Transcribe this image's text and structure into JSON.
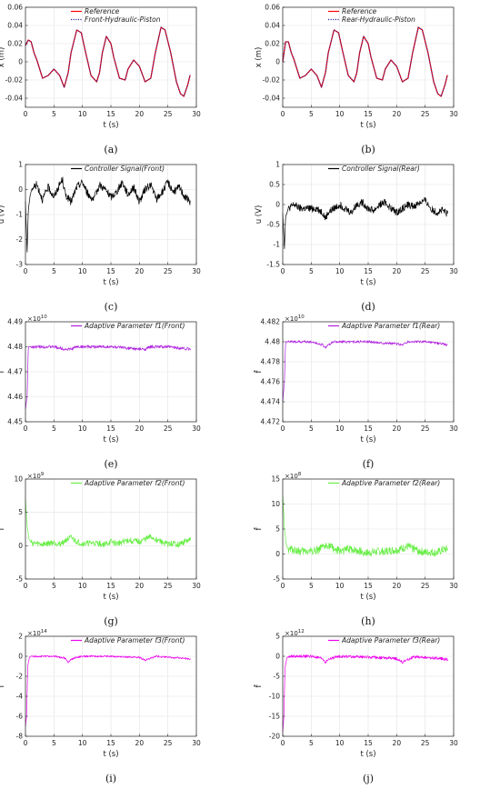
{
  "chart_data": [
    {
      "type": "line",
      "id": "a",
      "caption": "(a)",
      "xlabel": "t (s)",
      "ylabel": "x (m)",
      "xlim": [
        0,
        30
      ],
      "ylim": [
        -0.05,
        0.06
      ],
      "xticks": [
        "0",
        "5",
        "10",
        "15",
        "20",
        "25",
        "30"
      ],
      "yticks": [
        "-0.04",
        "-0.02",
        "0",
        "0.02",
        "0.04",
        "0.06"
      ],
      "grid": true,
      "legend": "top-center",
      "series": [
        {
          "name": "Reference",
          "color": "#ff0000",
          "style": "solid",
          "x": [
            0,
            0.5,
            1,
            1.5,
            2,
            3,
            4,
            5,
            6,
            6.8,
            7.5,
            8,
            9,
            9.8,
            10.5,
            11.5,
            12.5,
            13,
            13.5,
            14.2,
            15,
            15.5,
            16.5,
            17.5,
            18,
            19,
            20,
            21,
            22,
            22.8,
            23.8,
            24.5,
            25.5,
            26.5,
            27.2,
            27.8,
            28.5,
            29
          ],
          "values": [
            0.018,
            0.024,
            0.022,
            0.01,
            0.002,
            -0.018,
            -0.015,
            -0.008,
            -0.015,
            -0.028,
            -0.012,
            0.01,
            0.035,
            0.032,
            0.012,
            -0.015,
            -0.022,
            -0.012,
            0.01,
            0.028,
            0.02,
            0.005,
            -0.018,
            -0.02,
            -0.008,
            0.002,
            -0.005,
            -0.022,
            -0.018,
            0.01,
            0.038,
            0.035,
            0.01,
            -0.022,
            -0.035,
            -0.038,
            -0.025,
            -0.012
          ]
        },
        {
          "name": "Front-Hydraulic-Piston",
          "color": "#2a2a9a",
          "style": "dotted",
          "x": [
            0,
            0.5,
            1,
            1.5,
            2,
            3,
            4,
            5,
            6,
            6.8,
            7.5,
            8,
            9,
            9.8,
            10.5,
            11.5,
            12.5,
            13,
            13.5,
            14.2,
            15,
            15.5,
            16.5,
            17.5,
            18,
            19,
            20,
            21,
            22,
            22.8,
            23.8,
            24.5,
            25.5,
            26.5,
            27.2,
            27.8,
            28.5,
            29
          ],
          "values": [
            0.018,
            0.024,
            0.022,
            0.01,
            0.002,
            -0.018,
            -0.015,
            -0.008,
            -0.015,
            -0.028,
            -0.012,
            0.01,
            0.035,
            0.032,
            0.012,
            -0.015,
            -0.022,
            -0.012,
            0.01,
            0.028,
            0.02,
            0.005,
            -0.018,
            -0.02,
            -0.008,
            0.002,
            -0.005,
            -0.022,
            -0.018,
            0.01,
            0.038,
            0.035,
            0.01,
            -0.022,
            -0.035,
            -0.038,
            -0.025,
            -0.012
          ]
        }
      ]
    },
    {
      "type": "line",
      "id": "b",
      "caption": "(b)",
      "xlabel": "t (s)",
      "ylabel": "x (m)",
      "xlim": [
        0,
        30
      ],
      "ylim": [
        -0.05,
        0.06
      ],
      "xticks": [
        "0",
        "5",
        "10",
        "15",
        "20",
        "25",
        "30"
      ],
      "yticks": [
        "-0.04",
        "-0.02",
        "0",
        "0.02",
        "0.04",
        "0.06"
      ],
      "grid": true,
      "legend": "top-center",
      "series": [
        {
          "name": "Reference",
          "color": "#ff0000",
          "style": "solid",
          "x": [
            0,
            0.5,
            1,
            1.5,
            2,
            3,
            4,
            5,
            6,
            6.8,
            7.5,
            8,
            9,
            9.8,
            10.5,
            11.5,
            12.5,
            13,
            13.5,
            14.2,
            15,
            15.5,
            16.5,
            17.5,
            18,
            19,
            20,
            21,
            22,
            22.8,
            23.8,
            24.5,
            25.5,
            26.5,
            27.2,
            27.8,
            28.5,
            29
          ],
          "values": [
            0.0,
            0.022,
            0.022,
            0.01,
            0.002,
            -0.018,
            -0.015,
            -0.008,
            -0.015,
            -0.028,
            -0.012,
            0.01,
            0.035,
            0.032,
            0.012,
            -0.015,
            -0.022,
            -0.012,
            0.01,
            0.028,
            0.02,
            0.005,
            -0.018,
            -0.02,
            -0.008,
            0.002,
            -0.005,
            -0.022,
            -0.018,
            0.01,
            0.038,
            0.035,
            0.01,
            -0.022,
            -0.035,
            -0.038,
            -0.025,
            -0.012
          ]
        },
        {
          "name": "Rear-Hydraulic-Piston",
          "color": "#2a2a9a",
          "style": "dotted",
          "x": [
            0,
            0.5,
            1,
            1.5,
            2,
            3,
            4,
            5,
            6,
            6.8,
            7.5,
            8,
            9,
            9.8,
            10.5,
            11.5,
            12.5,
            13,
            13.5,
            14.2,
            15,
            15.5,
            16.5,
            17.5,
            18,
            19,
            20,
            21,
            22,
            22.8,
            23.8,
            24.5,
            25.5,
            26.5,
            27.2,
            27.8,
            28.5,
            29
          ],
          "values": [
            0.0,
            0.022,
            0.022,
            0.01,
            0.002,
            -0.018,
            -0.015,
            -0.008,
            -0.015,
            -0.028,
            -0.012,
            0.01,
            0.035,
            0.032,
            0.012,
            -0.015,
            -0.022,
            -0.012,
            0.01,
            0.028,
            0.02,
            0.005,
            -0.018,
            -0.02,
            -0.008,
            0.002,
            -0.005,
            -0.022,
            -0.018,
            0.01,
            0.038,
            0.035,
            0.01,
            -0.022,
            -0.035,
            -0.038,
            -0.025,
            -0.012
          ]
        }
      ]
    },
    {
      "type": "line",
      "id": "c",
      "caption": "(c)",
      "xlabel": "t (s)",
      "ylabel": "u (V)",
      "xlim": [
        0,
        30
      ],
      "ylim": [
        -3,
        1
      ],
      "xticks": [
        "0",
        "5",
        "10",
        "15",
        "20",
        "25",
        "30"
      ],
      "yticks": [
        "-3",
        "-2",
        "-1",
        "0",
        "1"
      ],
      "grid": true,
      "legend": "top-center",
      "series": [
        {
          "name": "Controller Signal(Front)",
          "color": "#000000",
          "style": "solid",
          "x": [
            0,
            0.3,
            0.5,
            1,
            2,
            3,
            4,
            5,
            6,
            6.5,
            7,
            8,
            9,
            10,
            11,
            12,
            13,
            14,
            15,
            16,
            17,
            18,
            19,
            20,
            21,
            22,
            23,
            24,
            25,
            26,
            27,
            28,
            29
          ],
          "values": [
            -0.5,
            -2.5,
            -0.8,
            0.0,
            0.2,
            -0.4,
            0.1,
            -0.3,
            0.2,
            0.4,
            -0.2,
            -0.5,
            0.1,
            0.3,
            -0.2,
            -0.4,
            0.2,
            0.0,
            -0.3,
            -0.1,
            0.3,
            -0.2,
            0.1,
            -0.5,
            0.0,
            0.2,
            -0.4,
            -0.1,
            0.3,
            -0.1,
            0.1,
            -0.3,
            -0.5
          ],
          "noise": 0.3
        },
        {
          "name": "",
          "color": "#000000",
          "style": "solid",
          "x": [],
          "values": []
        }
      ]
    },
    {
      "type": "line",
      "id": "d",
      "caption": "(d)",
      "xlabel": "t (s)",
      "ylabel": "u (V)",
      "xlim": [
        0,
        30
      ],
      "ylim": [
        -1.5,
        1
      ],
      "xticks": [
        "0",
        "5",
        "10",
        "15",
        "20",
        "25",
        "30"
      ],
      "yticks": [
        "-1.5",
        "-1",
        "-0.5",
        "0",
        "0.5",
        "1"
      ],
      "grid": true,
      "legend": "top-center",
      "series": [
        {
          "name": "Controller Signal(Rear)",
          "color": "#000000",
          "style": "solid",
          "x": [
            0,
            0.3,
            0.5,
            1,
            2,
            3,
            4,
            5,
            6,
            7,
            7.5,
            8,
            9,
            10,
            11,
            12,
            13,
            14,
            15,
            16,
            17,
            18,
            19,
            20,
            21,
            22,
            23,
            24,
            25,
            26,
            27,
            28,
            29
          ],
          "values": [
            -0.2,
            -1.1,
            -0.3,
            -0.1,
            0.0,
            -0.1,
            -0.1,
            -0.1,
            -0.1,
            -0.2,
            -0.35,
            -0.2,
            -0.1,
            0.0,
            -0.1,
            -0.2,
            0.0,
            0.05,
            -0.1,
            -0.15,
            0.0,
            0.05,
            -0.1,
            -0.2,
            -0.1,
            0.0,
            -0.05,
            0.05,
            0.1,
            -0.1,
            -0.2,
            -0.15,
            -0.25
          ],
          "noise": 0.18
        }
      ]
    },
    {
      "type": "line",
      "id": "e",
      "caption": "(e)",
      "xlabel": "t (s)",
      "ylabel": "f̂",
      "exponent": "×10",
      "exponent_power": "10",
      "xlim": [
        0,
        30
      ],
      "ylim": [
        4.45,
        4.49
      ],
      "xticks": [
        "0",
        "5",
        "10",
        "15",
        "20",
        "25",
        "30"
      ],
      "yticks": [
        "4.45",
        "4.46",
        "4.47",
        "4.48",
        "4.49"
      ],
      "grid": true,
      "legend": "top-center",
      "series": [
        {
          "name": "Adaptive Parameter f1(Front)",
          "color": "#b020e0",
          "style": "solid",
          "x": [
            0,
            0.3,
            0.5,
            1,
            5,
            7,
            8,
            9,
            10,
            15,
            20,
            21,
            22,
            25,
            29
          ],
          "values": [
            4.455,
            4.46,
            4.48,
            4.48,
            4.48,
            4.479,
            4.479,
            4.48,
            4.48,
            4.48,
            4.479,
            4.479,
            4.48,
            4.48,
            4.479
          ],
          "noise": 0.0012
        }
      ]
    },
    {
      "type": "line",
      "id": "f",
      "caption": "(f)",
      "xlabel": "t (s)",
      "ylabel": "f̂",
      "exponent": "×10",
      "exponent_power": "10",
      "xlim": [
        0,
        30
      ],
      "ylim": [
        4.472,
        4.482
      ],
      "xticks": [
        "0",
        "5",
        "10",
        "15",
        "20",
        "25",
        "30"
      ],
      "yticks": [
        "4.472",
        "4.474",
        "4.476",
        "4.478",
        "4.48",
        "4.482"
      ],
      "grid": true,
      "legend": "top-center",
      "series": [
        {
          "name": "Adaptive Parameter f1(Rear)",
          "color": "#b020e0",
          "style": "solid",
          "x": [
            0,
            0.3,
            0.5,
            1,
            5,
            7,
            7.5,
            8,
            9,
            10,
            15,
            20,
            21,
            22,
            25,
            29
          ],
          "values": [
            4.474,
            4.476,
            4.48,
            4.48,
            4.48,
            4.4797,
            4.4794,
            4.4797,
            4.48,
            4.48,
            4.48,
            4.4798,
            4.4797,
            4.48,
            4.48,
            4.4797
          ],
          "noise": 0.00025
        }
      ]
    },
    {
      "type": "line",
      "id": "g",
      "caption": "(g)",
      "xlabel": "t (s)",
      "ylabel": "f̂",
      "exponent": "×10",
      "exponent_power": "9",
      "xlim": [
        0,
        30
      ],
      "ylim": [
        -5,
        10
      ],
      "xticks": [
        "0",
        "5",
        "10",
        "15",
        "20",
        "25",
        "30"
      ],
      "yticks": [
        "-5",
        "0",
        "5",
        "10"
      ],
      "grid": true,
      "legend": "top-center",
      "series": [
        {
          "name": "Adaptive Parameter f2(Front)",
          "color": "#66ee44",
          "style": "solid",
          "x": [
            0,
            0.3,
            0.6,
            1,
            2,
            3,
            5,
            6,
            7,
            8,
            9,
            10,
            12,
            14,
            15,
            16,
            18,
            20,
            22,
            24,
            25,
            26,
            27,
            28,
            29
          ],
          "values": [
            7,
            3,
            1,
            0.5,
            0.3,
            0.2,
            0.5,
            0.2,
            0.8,
            1.2,
            0.6,
            0.3,
            0.4,
            0.2,
            0.6,
            0.3,
            0.8,
            0.6,
            1.3,
            0.5,
            0.2,
            0.3,
            0.2,
            0.6,
            0.8
          ],
          "noise": 0.9
        }
      ]
    },
    {
      "type": "line",
      "id": "h",
      "caption": "(h)",
      "xlabel": "t (s)",
      "ylabel": "f̂",
      "exponent": "×10",
      "exponent_power": "8",
      "xlim": [
        0,
        30
      ],
      "ylim": [
        -5,
        15
      ],
      "xticks": [
        "0",
        "5",
        "10",
        "15",
        "20",
        "25",
        "30"
      ],
      "yticks": [
        "-5",
        "0",
        "5",
        "10",
        "15"
      ],
      "grid": true,
      "legend": "top-center",
      "series": [
        {
          "name": "Adaptive Parameter f2(Rear)",
          "color": "#66ee44",
          "style": "solid",
          "x": [
            0,
            0.3,
            0.6,
            1,
            2,
            3,
            5,
            6,
            7,
            8,
            9,
            10,
            12,
            14,
            15,
            16,
            18,
            20,
            22,
            24,
            25,
            26,
            27,
            28,
            29
          ],
          "values": [
            12,
            5,
            2,
            1,
            0.8,
            0.5,
            0.6,
            0.8,
            1.2,
            1.8,
            1.0,
            0.6,
            1.0,
            0.4,
            0.2,
            0.4,
            0.6,
            0.8,
            1.5,
            0.6,
            0.3,
            0.4,
            0.2,
            0.8,
            1.0
          ],
          "noise": 1.6
        }
      ]
    },
    {
      "type": "line",
      "id": "i",
      "caption": "(i)",
      "xlabel": "t (s)",
      "ylabel": "f̂",
      "exponent": "×10",
      "exponent_power": "14",
      "xlim": [
        0,
        30
      ],
      "ylim": [
        -8,
        2
      ],
      "xticks": [
        "0",
        "5",
        "10",
        "15",
        "20",
        "25",
        "30"
      ],
      "yticks": [
        "-8",
        "-6",
        "-4",
        "-2",
        "0",
        "2"
      ],
      "grid": true,
      "legend": "top-center",
      "series": [
        {
          "name": "Adaptive Parameter f3(Front)",
          "color": "#ee00ee",
          "style": "solid",
          "x": [
            0,
            0.2,
            0.4,
            0.7,
            1,
            3,
            5,
            7,
            7.5,
            8,
            9,
            10,
            15,
            20,
            21,
            22,
            23,
            25,
            28,
            29
          ],
          "values": [
            -7,
            -6,
            -1,
            -0.1,
            0,
            0,
            0,
            -0.2,
            -0.6,
            -0.3,
            -0.1,
            0,
            0,
            -0.1,
            -0.4,
            -0.2,
            0,
            -0.1,
            -0.2,
            -0.3
          ],
          "noise": 0.18
        }
      ]
    },
    {
      "type": "line",
      "id": "j",
      "caption": "(j)",
      "xlabel": "t (s)",
      "ylabel": "f̂",
      "exponent": "×10",
      "exponent_power": "12",
      "xlim": [
        0,
        30
      ],
      "ylim": [
        -20,
        5
      ],
      "xticks": [
        "0",
        "5",
        "10",
        "15",
        "20",
        "25",
        "30"
      ],
      "yticks": [
        "-20",
        "-15",
        "-10",
        "-5",
        "0",
        "5"
      ],
      "grid": true,
      "legend": "top-center",
      "series": [
        {
          "name": "Adaptive Parameter f3(Rear)",
          "color": "#ee00ee",
          "style": "solid",
          "x": [
            0,
            0.2,
            0.4,
            0.7,
            1,
            3,
            5,
            7,
            7.5,
            8,
            9,
            10,
            15,
            20,
            21,
            22,
            23,
            25,
            28,
            29
          ],
          "values": [
            -19,
            -15,
            -3,
            -0.5,
            0,
            0,
            0,
            -0.6,
            -1.5,
            -0.8,
            -0.3,
            0,
            -0.2,
            -0.6,
            -1.5,
            -0.8,
            -0.2,
            -0.3,
            -0.6,
            -0.8
          ],
          "noise": 0.7
        }
      ]
    }
  ]
}
